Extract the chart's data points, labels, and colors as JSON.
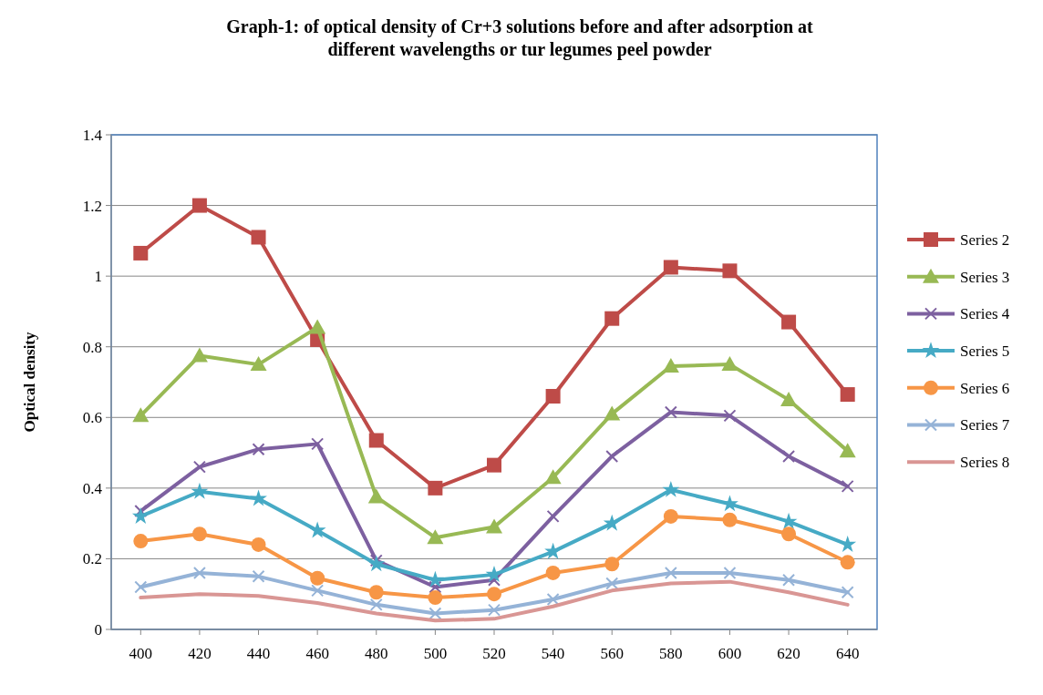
{
  "chart_data": {
    "type": "line",
    "title": "Graph-1: of optical density of Cr+3 solutions before and after adsorption at different wavelengths  or tur  legumes peel powder",
    "ylabel": "Optical density",
    "x": [
      400,
      420,
      440,
      460,
      480,
      500,
      520,
      540,
      560,
      580,
      600,
      620,
      640
    ],
    "xlim": [
      390,
      650
    ],
    "xticks": [
      400,
      420,
      440,
      460,
      480,
      500,
      520,
      540,
      560,
      580,
      600,
      620,
      640
    ],
    "ylim": [
      0,
      1.4
    ],
    "yticks": [
      0,
      0.2,
      0.4,
      0.6,
      0.8,
      1,
      1.2,
      1.4
    ],
    "grid": "y",
    "legend": "right",
    "series": [
      {
        "name": "Series 2",
        "color": "#be4b48",
        "marker": "square",
        "values": [
          1.065,
          1.2,
          1.11,
          0.82,
          0.535,
          0.4,
          0.465,
          0.66,
          0.88,
          1.025,
          1.015,
          0.87,
          0.665
        ]
      },
      {
        "name": "Series 3",
        "color": "#98b954",
        "marker": "triangle",
        "values": [
          0.605,
          0.775,
          0.75,
          0.855,
          0.375,
          0.26,
          0.29,
          0.43,
          0.61,
          0.745,
          0.75,
          0.65,
          0.505
        ]
      },
      {
        "name": "Series 4",
        "color": "#7d60a0",
        "marker": "cross",
        "values": [
          0.335,
          0.46,
          0.51,
          0.525,
          0.195,
          0.12,
          0.14,
          0.32,
          0.49,
          0.615,
          0.605,
          0.49,
          0.405
        ]
      },
      {
        "name": "Series 5",
        "color": "#46aac5",
        "marker": "star",
        "values": [
          0.32,
          0.39,
          0.37,
          0.28,
          0.185,
          0.14,
          0.155,
          0.22,
          0.3,
          0.395,
          0.355,
          0.305,
          0.24
        ]
      },
      {
        "name": "Series 6",
        "color": "#f79646",
        "marker": "circle",
        "values": [
          0.25,
          0.27,
          0.24,
          0.145,
          0.105,
          0.09,
          0.1,
          0.16,
          0.185,
          0.32,
          0.31,
          0.27,
          0.19
        ]
      },
      {
        "name": "Series 7",
        "color": "#95b3d7",
        "marker": "cross",
        "values": [
          0.12,
          0.16,
          0.15,
          0.11,
          0.07,
          0.045,
          0.055,
          0.085,
          0.13,
          0.16,
          0.16,
          0.14,
          0.105
        ]
      },
      {
        "name": "Series 8",
        "color": "#d99694",
        "marker": "none",
        "values": [
          0.09,
          0.1,
          0.095,
          0.075,
          0.045,
          0.025,
          0.03,
          0.065,
          0.11,
          0.13,
          0.135,
          0.105,
          0.07
        ]
      }
    ]
  }
}
